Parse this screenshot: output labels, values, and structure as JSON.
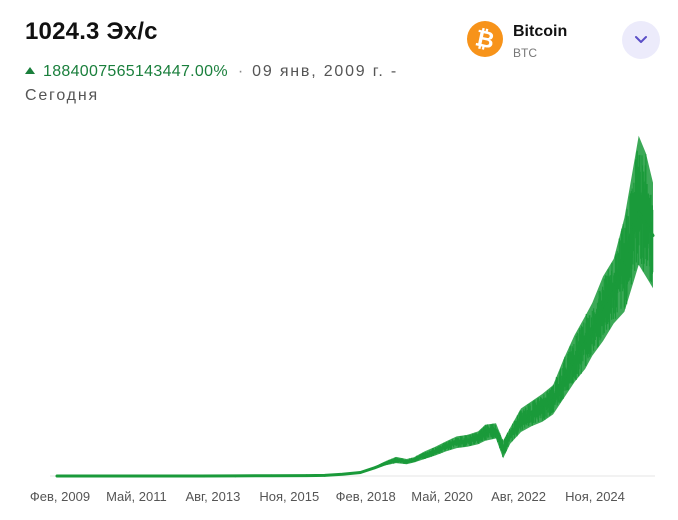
{
  "header": {
    "hashrate": "1024.3 Эх/с",
    "change_pct": "1884007565143447.00%",
    "separator": "·",
    "range_text": "09 янв, 2009 г. - Сегодня"
  },
  "coin": {
    "name": "Bitcoin",
    "ticker": "BTC",
    "icon": "bitcoin-logo-icon",
    "icon_color": "#f7931a"
  },
  "dropdown": {
    "icon": "chevron-down-icon",
    "color": "#5b4fc7",
    "background": "#ecebfb"
  },
  "chart_data": {
    "type": "area",
    "title": "",
    "xlabel": "",
    "ylabel": "",
    "color": "#1a9a3a",
    "grid": false,
    "x_ticks": [
      "Фев, 2009",
      "Май, 2011",
      "Авг, 2013",
      "Ноя, 2015",
      "Фев, 2018",
      "Май, 2020",
      "Авг, 2022",
      "Ноя, 2024"
    ],
    "ylim": [
      0,
      1200
    ],
    "series": [
      {
        "x": [
          2009.0,
          2010.0,
          2011.0,
          2012.0,
          2013.0,
          2014.0,
          2015.0,
          2016.0,
          2016.5,
          2017.0,
          2017.5,
          2017.9,
          2018.2,
          2018.5,
          2018.8,
          2019.0,
          2019.3,
          2019.6,
          2019.9,
          2020.2,
          2020.5,
          2020.8,
          2021.0,
          2021.3,
          2021.5,
          2021.7,
          2022.0,
          2022.3,
          2022.6,
          2022.9,
          2023.2,
          2023.5,
          2023.8,
          2024.0,
          2024.3,
          2024.6,
          2024.9,
          2025.1,
          2025.3,
          2025.5,
          2025.7
        ],
        "values": [
          0,
          0,
          0,
          0,
          0.1,
          0.5,
          1,
          1.5,
          2,
          6,
          12,
          28,
          42,
          55,
          48,
          55,
          70,
          85,
          100,
          115,
          120,
          130,
          150,
          155,
          90,
          140,
          190,
          215,
          235,
          260,
          330,
          400,
          455,
          500,
          580,
          630,
          720,
          840,
          900,
          860,
          820
        ],
        "min": [
          0,
          0,
          0,
          0,
          0.1,
          0.5,
          1,
          1.5,
          2,
          5,
          10,
          24,
          36,
          44,
          40,
          46,
          58,
          70,
          84,
          95,
          100,
          108,
          120,
          128,
          60,
          110,
          150,
          170,
          185,
          210,
          265,
          320,
          365,
          410,
          460,
          520,
          560,
          640,
          720,
          680,
          640
        ],
        "max": [
          0,
          0,
          0,
          0,
          0.1,
          0.5,
          1,
          1.5,
          2,
          7,
          14,
          32,
          50,
          65,
          58,
          64,
          84,
          100,
          118,
          135,
          140,
          152,
          175,
          180,
          120,
          165,
          230,
          255,
          280,
          310,
          400,
          480,
          545,
          590,
          680,
          740,
          880,
          1020,
          1160,
          1100,
          1000
        ]
      }
    ]
  }
}
